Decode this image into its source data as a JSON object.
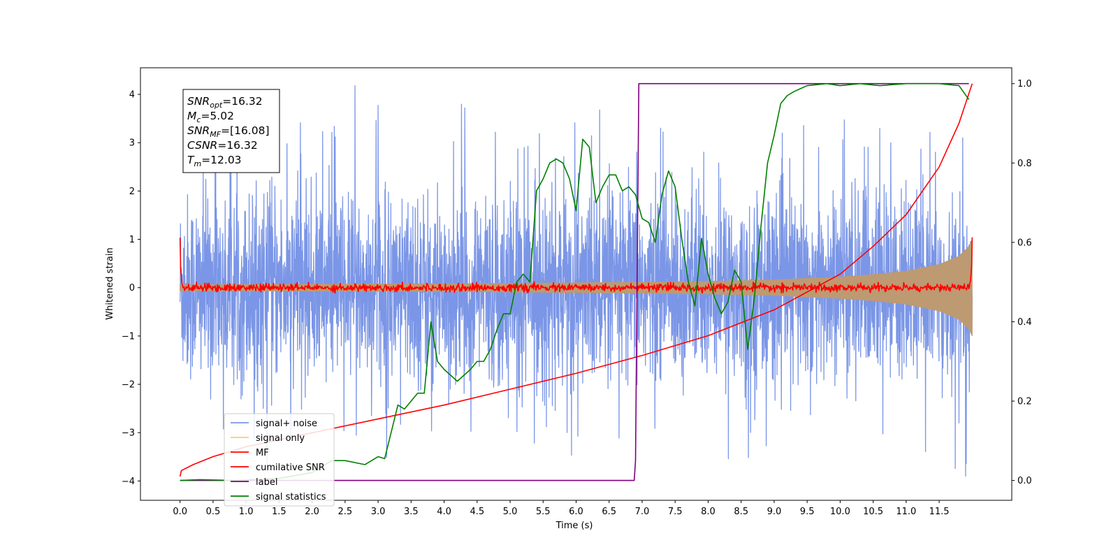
{
  "chart_data": {
    "type": "line",
    "title": "",
    "xlabel": "Time (s)",
    "ylabel": "Whitened strain",
    "ylabel_right": "",
    "xlim": [
      -0.6,
      12.6
    ],
    "ylim": [
      -4.4,
      4.55
    ],
    "ylim_right": [
      -0.05,
      1.04
    ],
    "xticks": [
      0.0,
      0.5,
      1.0,
      1.5,
      2.0,
      2.5,
      3.0,
      3.5,
      4.0,
      4.5,
      5.0,
      5.5,
      6.0,
      6.5,
      7.0,
      7.5,
      8.0,
      8.5,
      9.0,
      9.5,
      10.0,
      10.5,
      11.0,
      11.5
    ],
    "xtick_labels": [
      "0.0",
      "0.5",
      "1.0",
      "1.5",
      "2.0",
      "2.5",
      "3.0",
      "3.5",
      "4.0",
      "4.5",
      "5.0",
      "5.5",
      "6.0",
      "6.5",
      "7.0",
      "7.5",
      "8.0",
      "8.5",
      "9.0",
      "9.5",
      "10.0",
      "10.5",
      "11.0",
      "11.5"
    ],
    "yticks": [
      -4,
      -3,
      -2,
      -1,
      0,
      1,
      2,
      3,
      4
    ],
    "ytick_labels": [
      "−4",
      "−3",
      "−2",
      "−1",
      "0",
      "1",
      "2",
      "3",
      "4"
    ],
    "yticks_right": [
      0.0,
      0.2,
      0.4,
      0.6,
      0.8,
      1.0
    ],
    "ytick_labels_right": [
      "0.0",
      "0.2",
      "0.4",
      "0.6",
      "0.8",
      "1.0"
    ],
    "grid": false,
    "legend_position": "lower-left",
    "annotation": [
      {
        "sym": "SNR",
        "sub": "opt",
        "rest": "=16.32"
      },
      {
        "sym": "M",
        "sub": "c",
        "rest": "=5.02"
      },
      {
        "sym": "SNR",
        "sub": "MF",
        "rest": "=[16.08]"
      },
      {
        "sym": "CSNR",
        "sub": "",
        "rest": "=16.32"
      },
      {
        "sym": "T",
        "sub": "m",
        "rest": "=12.03"
      }
    ],
    "series": [
      {
        "name": "signal+ noise",
        "color": "#7b96e6",
        "axis": "left",
        "description": "noisy whitened strain, roughly spanning -2.5 to 2.5 with spikes to about 4.2 and -3.9",
        "x_range": [
          0.0,
          12.0
        ],
        "peak_max": 4.18,
        "peak_min": -3.9
      },
      {
        "name": "signal only",
        "color": "#ffc87a",
        "axis": "left",
        "description": "chirp envelope growing toward merger",
        "x": [
          0.0,
          2.0,
          4.0,
          6.0,
          8.0,
          9.0,
          10.0,
          10.5,
          11.0,
          11.5,
          11.8,
          11.95,
          12.0
        ],
        "envelope": [
          0.06,
          0.07,
          0.08,
          0.1,
          0.13,
          0.16,
          0.22,
          0.27,
          0.34,
          0.48,
          0.65,
          0.85,
          1.0
        ]
      },
      {
        "name": "MF",
        "color": "#ff0000",
        "axis": "left",
        "description": "matched filter output near 0 with peaks of about 1.0 at both ends",
        "x_range": [
          0.0,
          12.0
        ],
        "start_value": 1.0,
        "end_value": 0.95
      },
      {
        "name": "cumilative SNR",
        "color": "#ff0000",
        "axis": "right",
        "x": [
          0.0,
          0.02,
          0.2,
          0.5,
          1.0,
          2.0,
          3.0,
          4.0,
          5.0,
          6.0,
          7.0,
          8.0,
          9.0,
          10.0,
          10.5,
          11.0,
          11.5,
          11.8,
          12.0
        ],
        "y": [
          0.01,
          0.025,
          0.04,
          0.06,
          0.085,
          0.12,
          0.155,
          0.19,
          0.23,
          0.27,
          0.315,
          0.365,
          0.43,
          0.52,
          0.59,
          0.67,
          0.79,
          0.9,
          1.0
        ]
      },
      {
        "name": "label",
        "color": "#800080",
        "axis": "right",
        "x": [
          0.0,
          6.88,
          6.9,
          6.95,
          11.95
        ],
        "y": [
          0.0,
          0.0,
          0.05,
          1.0,
          1.0
        ]
      },
      {
        "name": "signal statistics",
        "color": "#008000",
        "axis": "right",
        "x": [
          0.0,
          0.3,
          0.8,
          1.5,
          2.0,
          2.3,
          2.5,
          2.8,
          3.0,
          3.1,
          3.3,
          3.4,
          3.6,
          3.7,
          3.8,
          3.9,
          4.0,
          4.2,
          4.4,
          4.5,
          4.6,
          4.7,
          4.8,
          4.9,
          5.0,
          5.1,
          5.2,
          5.3,
          5.4,
          5.5,
          5.6,
          5.7,
          5.8,
          5.9,
          6.0,
          6.1,
          6.2,
          6.3,
          6.4,
          6.5,
          6.6,
          6.7,
          6.8,
          6.9,
          7.0,
          7.1,
          7.2,
          7.3,
          7.4,
          7.5,
          7.6,
          7.7,
          7.8,
          7.9,
          8.0,
          8.1,
          8.2,
          8.3,
          8.4,
          8.5,
          8.6,
          8.7,
          8.8,
          8.9,
          9.0,
          9.1,
          9.2,
          9.3,
          9.5,
          9.8,
          10.0,
          10.3,
          10.6,
          11.0,
          11.5,
          11.8,
          11.95
        ],
        "y": [
          0.0,
          0.002,
          0.0,
          0.005,
          0.02,
          0.05,
          0.05,
          0.04,
          0.06,
          0.055,
          0.19,
          0.18,
          0.22,
          0.22,
          0.4,
          0.3,
          0.28,
          0.25,
          0.28,
          0.3,
          0.3,
          0.33,
          0.38,
          0.42,
          0.42,
          0.5,
          0.52,
          0.5,
          0.73,
          0.76,
          0.8,
          0.81,
          0.8,
          0.76,
          0.68,
          0.86,
          0.84,
          0.7,
          0.74,
          0.77,
          0.77,
          0.73,
          0.74,
          0.72,
          0.66,
          0.65,
          0.6,
          0.72,
          0.78,
          0.74,
          0.61,
          0.5,
          0.44,
          0.61,
          0.52,
          0.46,
          0.42,
          0.45,
          0.53,
          0.5,
          0.33,
          0.46,
          0.64,
          0.8,
          0.87,
          0.95,
          0.97,
          0.98,
          0.995,
          1.0,
          0.995,
          1.0,
          0.995,
          1.0,
          1.0,
          0.995,
          0.96
        ]
      }
    ]
  }
}
